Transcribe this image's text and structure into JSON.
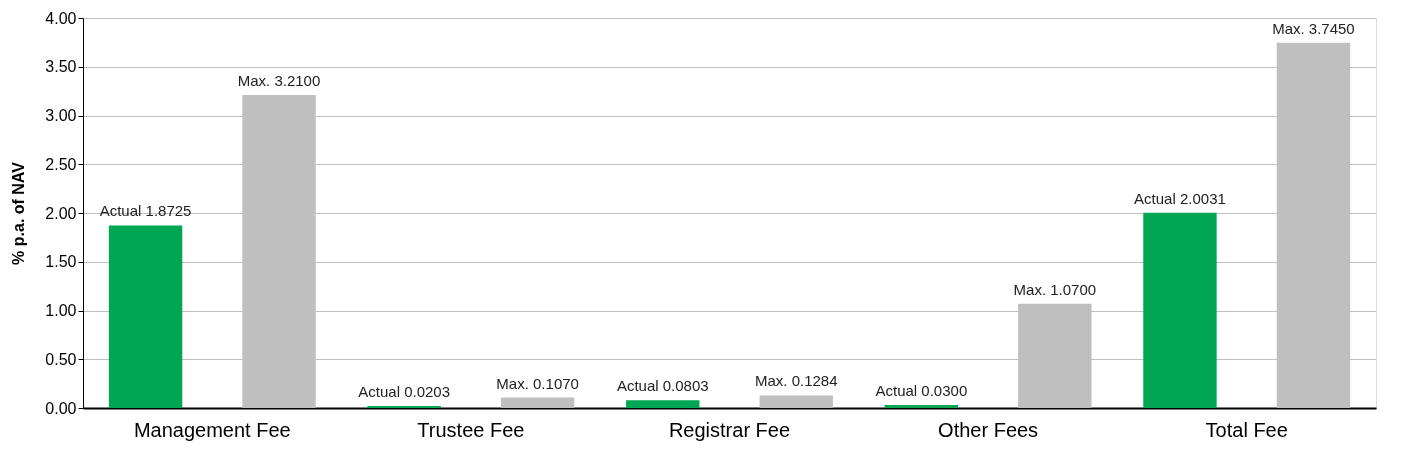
{
  "chart_data": {
    "type": "bar",
    "ylabel": "% p.a. of NAV",
    "categories": [
      "Management Fee",
      "Trustee Fee",
      "Registrar Fee",
      "Other Fees",
      "Total Fee"
    ],
    "series": [
      {
        "color": "#00a651",
        "values": [
          1.8725,
          0.0203,
          0.0803,
          0.03,
          2.0031
        ],
        "value_labels": [
          "Actual 1.8725",
          "Actual 0.0203",
          "Actual 0.0803",
          "Actual 0.0300",
          "Actual 2.0031"
        ]
      },
      {
        "color": "#bfbfbf",
        "values": [
          3.21,
          0.107,
          0.1284,
          1.07,
          3.745
        ],
        "value_labels": [
          "Max. 3.2100",
          "Max. 0.1070",
          "Max. 0.1284",
          "Max. 1.0700",
          "Max. 3.7450"
        ]
      }
    ],
    "ylim": [
      0,
      4
    ],
    "yticks": [
      {
        "value": 0,
        "label": "0.00"
      },
      {
        "value": 0.5,
        "label": "0.50"
      },
      {
        "value": 1,
        "label": "1.00"
      },
      {
        "value": 1.5,
        "label": "1.50"
      },
      {
        "value": 2,
        "label": "2.00"
      },
      {
        "value": 2.5,
        "label": "2.50"
      },
      {
        "value": 3,
        "label": "3.00"
      },
      {
        "value": 3.5,
        "label": "3.50"
      },
      {
        "value": 4,
        "label": "4.00"
      }
    ],
    "grid": "y"
  }
}
